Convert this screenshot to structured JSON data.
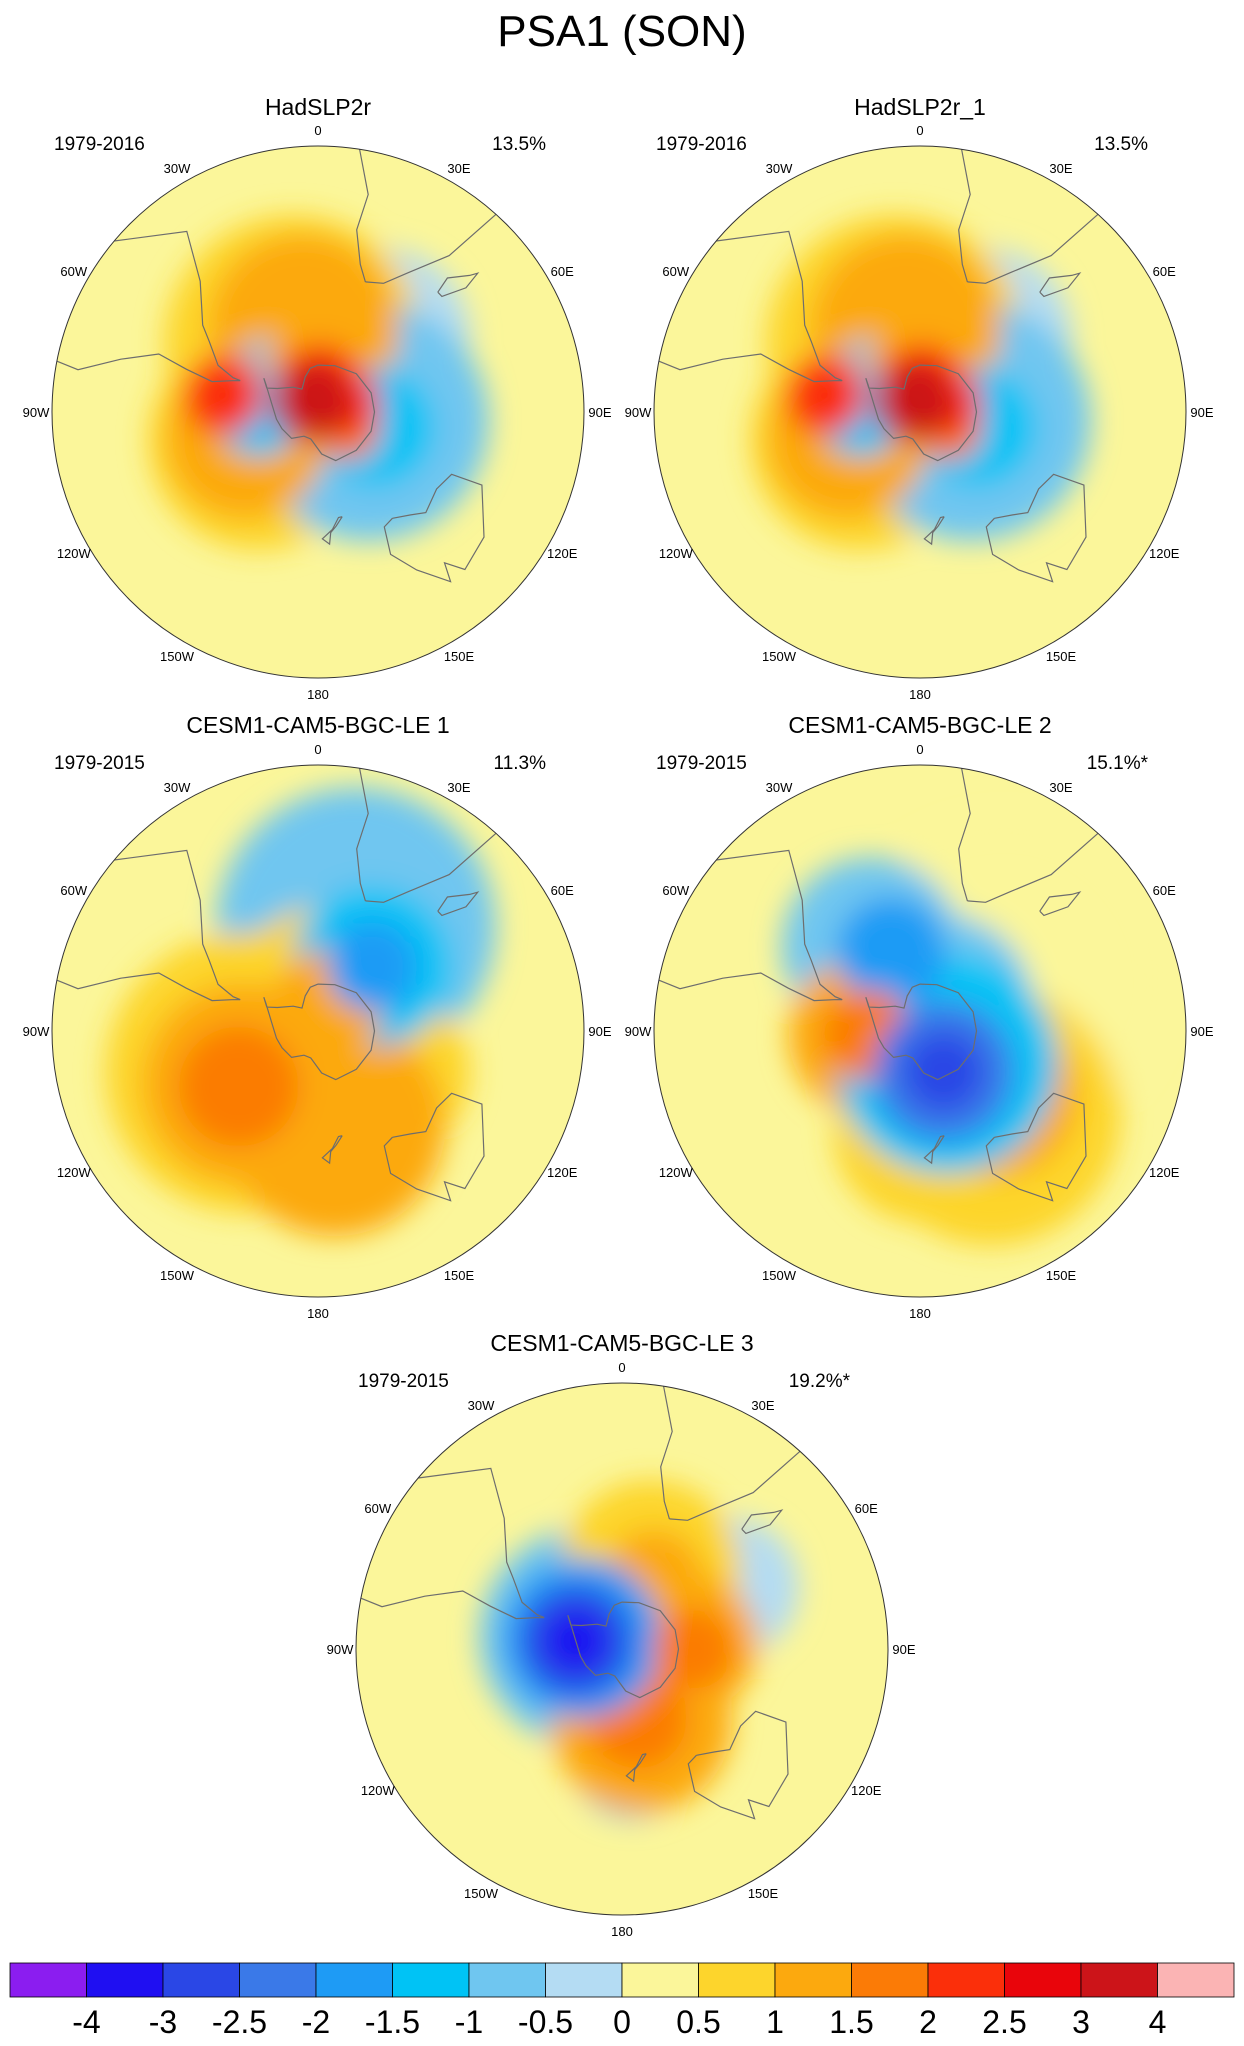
{
  "title": "PSA1 (SON)",
  "colors": {
    "ocean_base": "#fbf69a",
    "coast": "#6d6d6d",
    "border": "#333333"
  },
  "lon_labels": [
    "0",
    "30E",
    "60E",
    "90E",
    "120E",
    "150E",
    "180",
    "150W",
    "120W",
    "90W",
    "60W",
    "30W"
  ],
  "panels": [
    {
      "id": "hadslp2r",
      "title": "HadSLP2r",
      "period": "1979-2016",
      "variance": "13.5%",
      "blobs": [
        {
          "lat": -60,
          "lon": -20,
          "r": 130,
          "level": 0.6
        },
        {
          "lat": -55,
          "lon": -10,
          "r": 95,
          "level": 1.0
        },
        {
          "lat": -72,
          "lon": 10,
          "r": 60,
          "level": 1.2
        },
        {
          "lat": -80,
          "lon": 5,
          "r": 45,
          "level": 2.2
        },
        {
          "lat": -85,
          "lon": -30,
          "r": 40,
          "level": 3.2
        },
        {
          "lat": -78,
          "lon": 70,
          "r": 35,
          "level": 2.0
        },
        {
          "lat": -75,
          "lon": 120,
          "r": 30,
          "level": 1.5
        },
        {
          "lat": -62,
          "lon": -115,
          "r": 110,
          "level": 0.8
        },
        {
          "lat": -58,
          "lon": -110,
          "r": 80,
          "level": 1.3
        },
        {
          "lat": -50,
          "lon": -80,
          "r": 40,
          "level": 2.0
        },
        {
          "lat": -75,
          "lon": -80,
          "r": 70,
          "level": -1.0
        },
        {
          "lat": -65,
          "lon": -90,
          "r": 45,
          "level": -1.4
        },
        {
          "lat": -68,
          "lon": 100,
          "r": 120,
          "level": -0.8
        },
        {
          "lat": -65,
          "lon": 105,
          "r": 60,
          "level": -1.2
        },
        {
          "lat": -60,
          "lon": 60,
          "r": 70,
          "level": -0.6
        },
        {
          "lat": -50,
          "lon": 40,
          "r": 90,
          "level": -0.4
        }
      ]
    },
    {
      "id": "hadslp2r_1",
      "title": "HadSLP2r_1",
      "period": "1979-2016",
      "variance": "13.5%",
      "blobs": [
        {
          "lat": -60,
          "lon": -20,
          "r": 130,
          "level": 0.6
        },
        {
          "lat": -55,
          "lon": -10,
          "r": 95,
          "level": 1.0
        },
        {
          "lat": -72,
          "lon": 10,
          "r": 60,
          "level": 1.2
        },
        {
          "lat": -80,
          "lon": 5,
          "r": 45,
          "level": 2.2
        },
        {
          "lat": -85,
          "lon": -30,
          "r": 40,
          "level": 3.2
        },
        {
          "lat": -78,
          "lon": 70,
          "r": 35,
          "level": 2.0
        },
        {
          "lat": -75,
          "lon": 120,
          "r": 30,
          "level": 1.5
        },
        {
          "lat": -62,
          "lon": -115,
          "r": 110,
          "level": 0.8
        },
        {
          "lat": -58,
          "lon": -110,
          "r": 80,
          "level": 1.3
        },
        {
          "lat": -50,
          "lon": -80,
          "r": 40,
          "level": 2.0
        },
        {
          "lat": -75,
          "lon": -80,
          "r": 70,
          "level": -1.0
        },
        {
          "lat": -65,
          "lon": -90,
          "r": 45,
          "level": -1.4
        },
        {
          "lat": -68,
          "lon": 100,
          "r": 120,
          "level": -0.8
        },
        {
          "lat": -65,
          "lon": 105,
          "r": 60,
          "level": -1.2
        },
        {
          "lat": -60,
          "lon": 60,
          "r": 70,
          "level": -0.6
        },
        {
          "lat": -50,
          "lon": 40,
          "r": 90,
          "level": -0.4
        }
      ]
    },
    {
      "id": "cesm_1",
      "title": "CESM1-CAM5-BGC-LE 1",
      "period": "1979-2015",
      "variance": "11.3%",
      "blobs": [
        {
          "lat": -45,
          "lon": 20,
          "r": 140,
          "level": -0.6
        },
        {
          "lat": -55,
          "lon": 40,
          "r": 80,
          "level": -1.2
        },
        {
          "lat": -55,
          "lon": 40,
          "r": 45,
          "level": -1.8
        },
        {
          "lat": -65,
          "lon": -60,
          "r": 70,
          "level": -0.6
        },
        {
          "lat": -62,
          "lon": -110,
          "r": 60,
          "level": -1.2
        },
        {
          "lat": -75,
          "lon": 10,
          "r": 90,
          "level": 0.8
        },
        {
          "lat": -78,
          "lon": 20,
          "r": 55,
          "level": 1.2
        },
        {
          "lat": -55,
          "lon": -120,
          "r": 140,
          "level": 0.7
        },
        {
          "lat": -52,
          "lon": -125,
          "r": 100,
          "level": 1.3
        },
        {
          "lat": -50,
          "lon": -125,
          "r": 60,
          "level": 1.8
        },
        {
          "lat": -50,
          "lon": 170,
          "r": 110,
          "level": 1.0
        },
        {
          "lat": -45,
          "lon": 165,
          "r": 60,
          "level": 1.4
        },
        {
          "lat": -55,
          "lon": 120,
          "r": 80,
          "level": 0.6
        }
      ]
    },
    {
      "id": "cesm_2",
      "title": "CESM1-CAM5-BGC-LE 2",
      "period": "1979-2015",
      "variance": "15.1%*",
      "blobs": [
        {
          "lat": -50,
          "lon": 60,
          "r": 160,
          "level": 0.4
        },
        {
          "lat": -45,
          "lon": 140,
          "r": 130,
          "level": 0.6
        },
        {
          "lat": -48,
          "lon": 130,
          "r": 80,
          "level": 1.1
        },
        {
          "lat": -50,
          "lon": -30,
          "r": 90,
          "level": -0.8
        },
        {
          "lat": -55,
          "lon": -20,
          "r": 55,
          "level": -1.6
        },
        {
          "lat": -75,
          "lon": 40,
          "r": 90,
          "level": -0.8
        },
        {
          "lat": -72,
          "lon": 140,
          "r": 110,
          "level": -1.4
        },
        {
          "lat": -70,
          "lon": 150,
          "r": 70,
          "level": -2.2
        },
        {
          "lat": -70,
          "lon": 150,
          "r": 40,
          "level": -2.8
        },
        {
          "lat": -68,
          "lon": -95,
          "r": 80,
          "level": 1.2
        },
        {
          "lat": -68,
          "lon": -95,
          "r": 45,
          "level": 1.8
        },
        {
          "lat": -48,
          "lon": 178,
          "r": 90,
          "level": 0.9
        }
      ]
    },
    {
      "id": "cesm_3",
      "title": "CESM1-CAM5-BGC-LE 3",
      "period": "1979-2015",
      "variance": "19.2%*",
      "blobs": [
        {
          "lat": -55,
          "lon": 20,
          "r": 90,
          "level": 0.9
        },
        {
          "lat": -58,
          "lon": 25,
          "r": 50,
          "level": 1.2
        },
        {
          "lat": -62,
          "lon": 85,
          "r": 70,
          "level": 1.0
        },
        {
          "lat": -60,
          "lon": 90,
          "r": 40,
          "level": 1.8
        },
        {
          "lat": -58,
          "lon": 165,
          "r": 90,
          "level": 1.0
        },
        {
          "lat": -60,
          "lon": 168,
          "r": 50,
          "level": 1.6
        },
        {
          "lat": -75,
          "lon": -70,
          "r": 110,
          "level": -0.8
        },
        {
          "lat": -72,
          "lon": -75,
          "r": 80,
          "level": -1.6
        },
        {
          "lat": -70,
          "lon": -80,
          "r": 55,
          "level": -2.6
        },
        {
          "lat": -70,
          "lon": -80,
          "r": 30,
          "level": -3.6
        },
        {
          "lat": -45,
          "lon": 175,
          "r": 60,
          "level": -0.7
        },
        {
          "lat": -40,
          "lon": 60,
          "r": 70,
          "level": -0.4
        }
      ]
    }
  ],
  "colorbar": {
    "labels": [
      "-4",
      "-3",
      "-2.5",
      "-2",
      "-1.5",
      "-1",
      "-0.5",
      "0",
      "0.5",
      "1",
      "1.5",
      "2",
      "2.5",
      "3",
      "4"
    ],
    "boundaries": [
      -4,
      -3,
      -2.5,
      -2,
      -1.5,
      -1,
      -0.5,
      0,
      0.5,
      1,
      1.5,
      2,
      2.5,
      3,
      4
    ],
    "colors": [
      "#8b1df0",
      "#1f0ff2",
      "#2a47e6",
      "#3a79e8",
      "#1e9bf5",
      "#00c3f5",
      "#6fc6f0",
      "#b4dcf3",
      "#fbf69a",
      "#fdd52c",
      "#fca90e",
      "#fb7b06",
      "#fb2f0a",
      "#e9050b",
      "#cc1419",
      "#fbb4b4"
    ]
  }
}
